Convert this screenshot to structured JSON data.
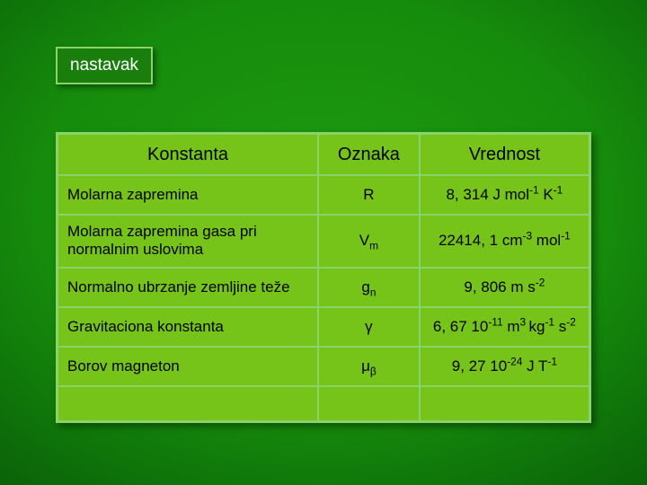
{
  "colors": {
    "cell_bg": "#76c31a",
    "border": "#89d46a",
    "text": "#000000",
    "badge_text": "#ffffff",
    "badge_bg": "#1a7e0c"
  },
  "badge": {
    "label": "nastavak"
  },
  "table": {
    "headers": {
      "col1": "Konstanta",
      "col2": "Oznaka",
      "col3": "Vrednost"
    },
    "rows": [
      {
        "konst": "Molarna zapremina",
        "oznaka_html": "R",
        "vrednost_html": "8, 314 J mol<sup>-1</sup> K<sup>-1</sup>"
      },
      {
        "konst": "Molarna zapremina gasa pri normalnim uslovima",
        "oznaka_html": "V<sub>m</sub>",
        "vrednost_html": "22414, 1 cm<sup>-3</sup> mol<sup>-1</sup>"
      },
      {
        "konst": "Normalno ubrzanje zemljine teže",
        "oznaka_html": "g<sub>n</sub>",
        "vrednost_html": "9, 806 m s<sup>-2</sup>"
      },
      {
        "konst": "Gravitaciona konstanta",
        "oznaka_html": "&#947;",
        "vrednost_html": "6, 67 10<sup>-11</sup> m<sup>3 </sup>kg<sup>-1</sup> s<sup>-2</sup>"
      },
      {
        "konst": "Borov magneton",
        "oznaka_html": "&#956;<sub>&#946;</sub>",
        "vrednost_html": "9, 27 10<sup>-24</sup> J T<sup>-1</sup>"
      }
    ]
  }
}
